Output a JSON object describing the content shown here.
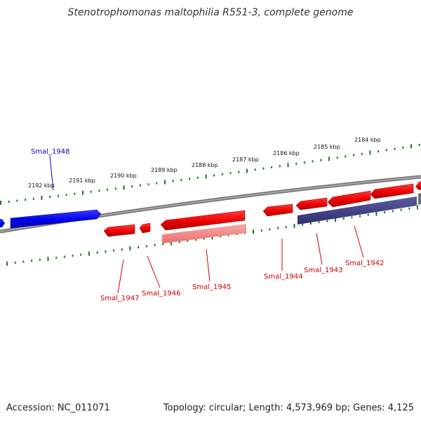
{
  "title": "Stenotrophomonas maltophilia R551-3, complete genome",
  "footer": {
    "accession": "Accession: NC_011071",
    "summary": "Topology: circular; Length: 4,573,969 bp; Genes: 4,125"
  },
  "colors": {
    "forward_gene": "#0000ee",
    "reverse_gene": "#ee0000",
    "reverse_gene_faded": "#f08080",
    "hit_bar": "#404080",
    "axis": "#808080",
    "tick": "#1a7a1a",
    "forward_label": "#0000cc",
    "reverse_label": "#cc0000"
  },
  "kbp_ticks": [
    "2192 kbp",
    "2191 kbp",
    "2190 kbp",
    "2189 kbp",
    "2188 kbp",
    "2187 kbp",
    "2186 kbp",
    "2185 kbp",
    "2184 kbp"
  ],
  "genes": [
    {
      "id": "Smal_1948",
      "strand": "forward"
    },
    {
      "id": "Smal_1947",
      "strand": "reverse"
    },
    {
      "id": "Smal_1946",
      "strand": "reverse"
    },
    {
      "id": "Smal_1945",
      "strand": "reverse"
    },
    {
      "id": "Smal_1944",
      "strand": "reverse"
    },
    {
      "id": "Smal_1943",
      "strand": "reverse"
    },
    {
      "id": "Smal_1942",
      "strand": "reverse"
    }
  ]
}
